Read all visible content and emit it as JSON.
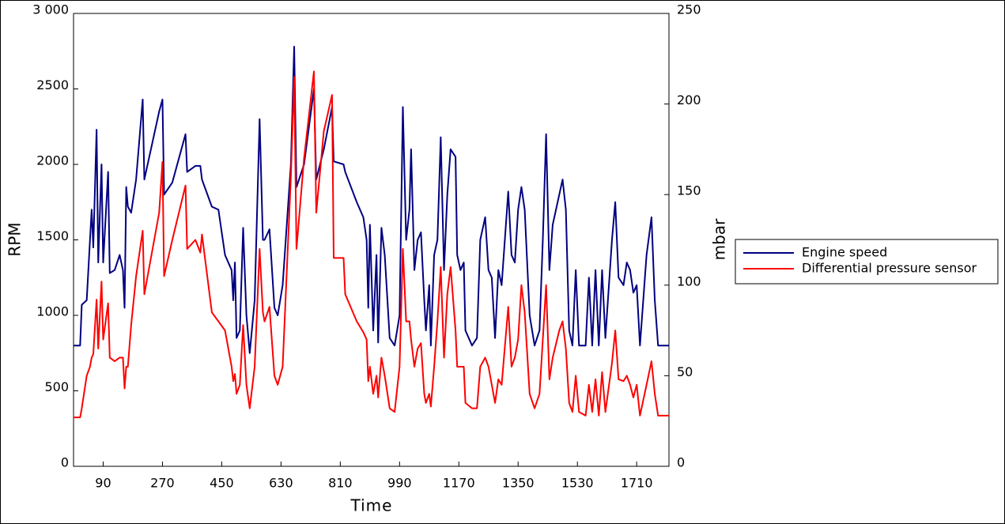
{
  "chart_data": {
    "type": "line",
    "x_label": "Time",
    "y_label": "RPM",
    "y2_label": "mbar",
    "xlim": [
      0,
      1808
    ],
    "xticks": [
      90,
      270,
      450,
      630,
      810,
      990,
      1170,
      1350,
      1530,
      1710
    ],
    "ylim": [
      0,
      3000
    ],
    "yticks": [
      0,
      500,
      1000,
      1500,
      2000,
      2500,
      {
        "value": 3000,
        "label": "3 000"
      }
    ],
    "y2lim": [
      0,
      250
    ],
    "y2ticks": [
      0,
      50,
      100,
      150,
      200,
      250
    ],
    "legend": "right",
    "x": [
      0,
      20,
      25,
      40,
      50,
      55,
      60,
      70,
      75,
      85,
      90,
      105,
      110,
      125,
      140,
      150,
      155,
      160,
      165,
      175,
      190,
      210,
      215,
      230,
      260,
      270,
      275,
      300,
      340,
      345,
      370,
      385,
      390,
      420,
      440,
      460,
      480,
      485,
      490,
      495,
      505,
      515,
      525,
      535,
      550,
      565,
      575,
      580,
      595,
      610,
      620,
      635,
      660,
      670,
      677,
      700,
      730,
      737,
      760,
      785,
      790,
      820,
      825,
      860,
      880,
      890,
      895,
      900,
      910,
      920,
      925,
      935,
      945,
      960,
      975,
      990,
      1000,
      1010,
      1020,
      1025,
      1035,
      1045,
      1055,
      1065,
      1070,
      1080,
      1085,
      1095,
      1105,
      1115,
      1125,
      1135,
      1145,
      1160,
      1165,
      1175,
      1185,
      1190,
      1210,
      1225,
      1235,
      1250,
      1260,
      1270,
      1280,
      1290,
      1300,
      1320,
      1330,
      1340,
      1350,
      1360,
      1370,
      1385,
      1400,
      1415,
      1425,
      1435,
      1445,
      1455,
      1475,
      1485,
      1495,
      1505,
      1515,
      1525,
      1535,
      1555,
      1565,
      1575,
      1585,
      1595,
      1605,
      1615,
      1635,
      1645,
      1655,
      1670,
      1680,
      1690,
      1700,
      1710,
      1720,
      1740,
      1755,
      1765,
      1775,
      1808
    ],
    "series": [
      {
        "name": "Engine speed",
        "color": "#000080",
        "values": [
          800,
          800,
          1070,
          1100,
          1500,
          1700,
          1450,
          2230,
          1350,
          2000,
          1350,
          1950,
          1280,
          1300,
          1400,
          1300,
          1050,
          1850,
          1720,
          1680,
          1900,
          2430,
          1900,
          2050,
          2350,
          2430,
          1800,
          1880,
          2200,
          1950,
          1990,
          1990,
          1900,
          1720,
          1700,
          1400,
          1300,
          1100,
          1350,
          850,
          900,
          1580,
          1000,
          750,
          1100,
          2300,
          1500,
          1500,
          1570,
          1050,
          1000,
          1200,
          2000,
          2780,
          1850,
          2000,
          2500,
          1900,
          2100,
          2380,
          2020,
          2000,
          1950,
          1750,
          1650,
          1500,
          1050,
          1600,
          900,
          1400,
          820,
          1580,
          1400,
          850,
          800,
          1000,
          2380,
          1500,
          1700,
          2100,
          1300,
          1500,
          1550,
          1100,
          900,
          1200,
          800,
          1400,
          1500,
          2180,
          1300,
          1800,
          2100,
          2050,
          1400,
          1300,
          1350,
          900,
          800,
          850,
          1500,
          1650,
          1300,
          1250,
          850,
          1300,
          1200,
          1820,
          1400,
          1350,
          1700,
          1850,
          1700,
          1000,
          800,
          900,
          1500,
          2200,
          1300,
          1600,
          1800,
          1900,
          1700,
          900,
          800,
          1300,
          800,
          800,
          1250,
          800,
          1300,
          800,
          1300,
          850,
          1500,
          1750,
          1250,
          1200,
          1350,
          1300,
          1150,
          1200,
          800,
          1400,
          1650,
          1100,
          800,
          800
        ]
      },
      {
        "name": "Differential pressure sensor",
        "color": "#ff0000",
        "axis": "y2",
        "values": [
          27,
          27,
          32,
          50,
          55,
          60,
          62,
          92,
          65,
          102,
          70,
          90,
          60,
          58,
          60,
          60,
          43,
          55,
          55,
          78,
          105,
          130,
          95,
          110,
          140,
          168,
          105,
          125,
          155,
          120,
          125,
          118,
          128,
          85,
          80,
          75,
          55,
          47,
          51,
          40,
          45,
          78,
          45,
          32,
          55,
          120,
          85,
          80,
          88,
          50,
          45,
          55,
          160,
          215,
          120,
          170,
          218,
          140,
          185,
          205,
          115,
          115,
          95,
          80,
          74,
          70,
          47,
          55,
          40,
          50,
          38,
          60,
          50,
          32,
          30,
          55,
          120,
          80,
          80,
          70,
          55,
          65,
          68,
          40,
          35,
          40,
          33,
          55,
          80,
          110,
          60,
          95,
          110,
          75,
          55,
          55,
          55,
          35,
          32,
          32,
          55,
          60,
          55,
          45,
          35,
          48,
          45,
          88,
          55,
          60,
          70,
          100,
          85,
          40,
          32,
          40,
          70,
          100,
          48,
          60,
          75,
          80,
          65,
          35,
          30,
          50,
          30,
          28,
          45,
          30,
          48,
          28,
          52,
          30,
          57,
          75,
          48,
          47,
          50,
          45,
          38,
          45,
          28,
          45,
          58,
          40,
          28,
          28
        ]
      }
    ]
  }
}
